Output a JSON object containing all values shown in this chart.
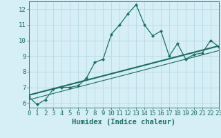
{
  "xlabel": "Humidex (Indice chaleur)",
  "ylabel": "",
  "bg_color": "#d6eef5",
  "grid_color": "#b8d8e2",
  "line_color": "#1a6e5e",
  "x_data": [
    0,
    1,
    2,
    3,
    4,
    5,
    6,
    7,
    8,
    9,
    10,
    11,
    12,
    13,
    14,
    15,
    16,
    17,
    18,
    19,
    20,
    21,
    22,
    23
  ],
  "y_data": [
    6.4,
    5.9,
    6.2,
    6.9,
    7.0,
    7.0,
    7.1,
    7.6,
    8.6,
    8.8,
    10.4,
    11.0,
    11.7,
    12.3,
    11.0,
    10.3,
    10.6,
    9.0,
    9.8,
    8.8,
    9.1,
    9.2,
    10.0,
    9.6
  ],
  "xlim": [
    0,
    23
  ],
  "ylim": [
    5.7,
    12.5
  ],
  "yticks": [
    6,
    7,
    8,
    9,
    10,
    11,
    12
  ],
  "xticks": [
    0,
    1,
    2,
    3,
    4,
    5,
    6,
    7,
    8,
    9,
    10,
    11,
    12,
    13,
    14,
    15,
    16,
    17,
    18,
    19,
    20,
    21,
    22,
    23
  ],
  "reg_line1_pts": [
    [
      0,
      6.5
    ],
    [
      23,
      9.65
    ]
  ],
  "reg_line2_pts": [
    [
      0,
      6.2
    ],
    [
      23,
      9.35
    ]
  ],
  "tick_fontsize": 6.5,
  "axis_fontsize": 7.5
}
